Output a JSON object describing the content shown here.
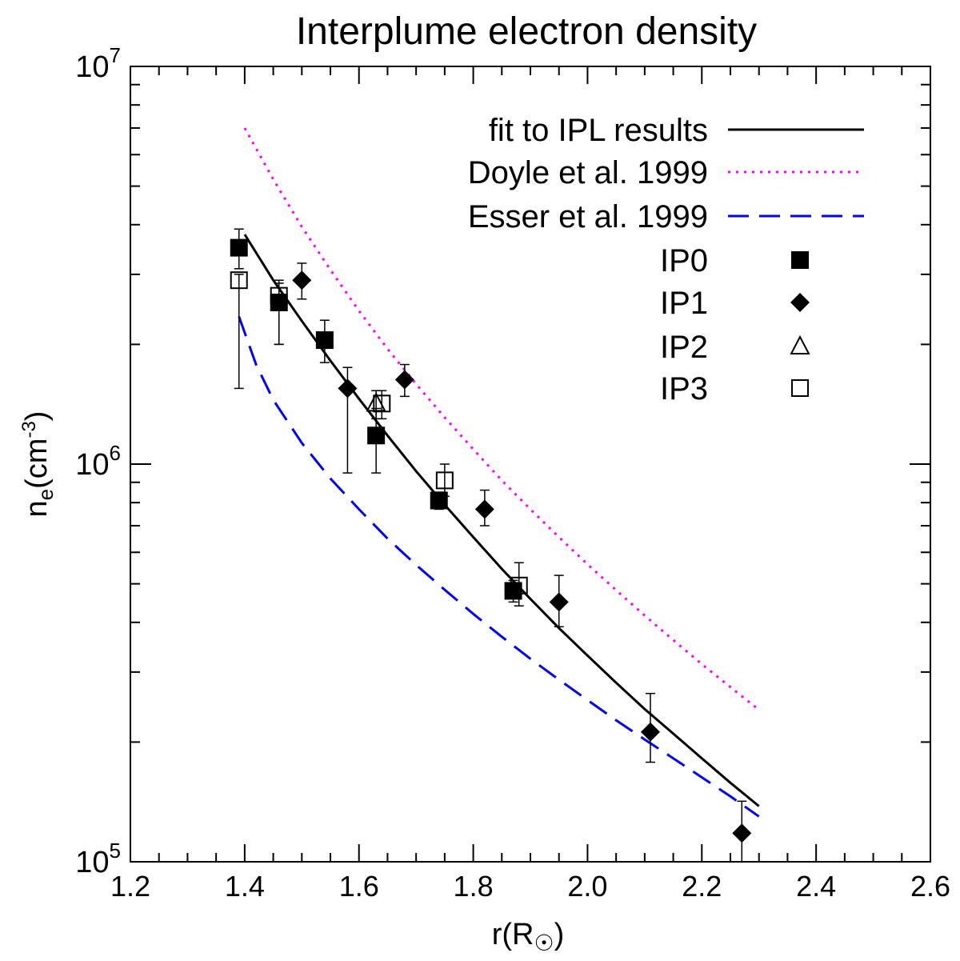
{
  "chart_data": {
    "type": "scatter",
    "title": "Interplume electron density",
    "xlabel": {
      "base": "r(R",
      "symbol": "☉",
      "tail": ")"
    },
    "ylabel": {
      "base": "n",
      "sub": "e",
      "open": "(cm",
      "sup": "-3",
      "close": ")"
    },
    "xlim": [
      1.2,
      2.6
    ],
    "ylim": [
      100000,
      10000000
    ],
    "yscale": "log",
    "grid": false,
    "legend_position": "top-right",
    "x_ticks": [
      {
        "value": 1.2,
        "label": "1.2"
      },
      {
        "value": 1.4,
        "label": "1.4"
      },
      {
        "value": 1.6,
        "label": "1.6"
      },
      {
        "value": 1.8,
        "label": "1.8"
      },
      {
        "value": 2.0,
        "label": "2.0"
      },
      {
        "value": 2.2,
        "label": "2.2"
      },
      {
        "value": 2.4,
        "label": "2.4"
      },
      {
        "value": 2.6,
        "label": "2.6"
      }
    ],
    "y_ticks": [
      {
        "value": 100000,
        "base": "10",
        "exp": "5"
      },
      {
        "value": 1000000,
        "base": "10",
        "exp": "6"
      },
      {
        "value": 10000000,
        "base": "10",
        "exp": "7"
      }
    ],
    "lines": [
      {
        "name": "fit to IPL results",
        "style": "solid",
        "color": "#000000",
        "x": [
          1.4,
          1.45,
          1.5,
          1.55,
          1.6,
          1.65,
          1.7,
          1.75,
          1.8,
          1.85,
          1.9,
          1.95,
          2.0,
          2.05,
          2.1,
          2.15,
          2.2,
          2.25,
          2.3
        ],
        "y": [
          3780000,
          2900000,
          2290000,
          1820000,
          1460000,
          1180000,
          960000,
          790000,
          655000,
          545000,
          458000,
          387000,
          330000,
          282000,
          242000,
          210000,
          182000,
          158000,
          138000
        ]
      },
      {
        "name": "Doyle et al. 1999",
        "style": "dotted",
        "color": "#ff00ff",
        "x": [
          1.4,
          1.45,
          1.5,
          1.55,
          1.6,
          1.65,
          1.7,
          1.75,
          1.8,
          1.85,
          1.9,
          1.95,
          2.0,
          2.05,
          2.1,
          2.15,
          2.2,
          2.25,
          2.3
        ],
        "y": [
          7000000,
          5200000,
          3950000,
          3080000,
          2430000,
          1950000,
          1590000,
          1310000,
          1090000,
          910000,
          770000,
          655000,
          560000,
          482000,
          416000,
          361000,
          314000,
          275000,
          241000
        ]
      },
      {
        "name": "Esser et al. 1999",
        "style": "dashed",
        "color": "#0000ff",
        "x": [
          1.39,
          1.42,
          1.45,
          1.5,
          1.55,
          1.6,
          1.65,
          1.7,
          1.75,
          1.8,
          1.85,
          1.9,
          1.95,
          2.0,
          2.05,
          2.1,
          2.15,
          2.2,
          2.25,
          2.3
        ],
        "y": [
          2350000,
          1780000,
          1450000,
          1130000,
          920000,
          770000,
          650000,
          558000,
          483000,
          420000,
          368000,
          324000,
          287000,
          255000,
          227000,
          203000,
          182000,
          163000,
          146000,
          130000
        ]
      }
    ],
    "series": [
      {
        "name": "IP0",
        "marker": "filled-square",
        "points": [
          {
            "x": 1.39,
            "y": 3500000,
            "lo": 3100000,
            "hi": 3900000
          },
          {
            "x": 1.46,
            "y": 2550000,
            "lo": 2000000,
            "hi": 2900000
          },
          {
            "x": 1.54,
            "y": 2050000,
            "lo": 1800000,
            "hi": 2300000
          },
          {
            "x": 1.63,
            "y": 1180000,
            "lo": 950000,
            "hi": 1380000
          },
          {
            "x": 1.74,
            "y": 810000,
            "lo": 770000,
            "hi": 850000
          },
          {
            "x": 1.87,
            "y": 480000,
            "lo": 450000,
            "hi": 510000
          }
        ]
      },
      {
        "name": "IP1",
        "marker": "filled-diamond",
        "points": [
          {
            "x": 1.5,
            "y": 2900000,
            "lo": 2600000,
            "hi": 3200000
          },
          {
            "x": 1.58,
            "y": 1550000,
            "lo": 950000,
            "hi": 1750000
          },
          {
            "x": 1.68,
            "y": 1630000,
            "lo": 1480000,
            "hi": 1780000
          },
          {
            "x": 1.82,
            "y": 770000,
            "lo": 700000,
            "hi": 860000
          },
          {
            "x": 1.95,
            "y": 450000,
            "lo": 390000,
            "hi": 525000
          },
          {
            "x": 2.11,
            "y": 212000,
            "lo": 178000,
            "hi": 265000
          },
          {
            "x": 2.27,
            "y": 118000,
            "lo": 100000,
            "hi": 142000
          }
        ]
      },
      {
        "name": "IP2",
        "marker": "open-triangle",
        "points": [
          {
            "x": 1.63,
            "y": 1420000,
            "lo": 1300000,
            "hi": 1530000
          }
        ]
      },
      {
        "name": "IP3",
        "marker": "open-square",
        "points": [
          {
            "x": 1.39,
            "y": 2900000,
            "lo": 1550000,
            "hi": 3000000
          },
          {
            "x": 1.46,
            "y": 2650000,
            "lo": 2000000,
            "hi": 2850000
          },
          {
            "x": 1.64,
            "y": 1420000,
            "lo": 1300000,
            "hi": 1530000
          },
          {
            "x": 1.75,
            "y": 910000,
            "lo": 830000,
            "hi": 1000000
          },
          {
            "x": 1.88,
            "y": 495000,
            "lo": 440000,
            "hi": 565000
          }
        ]
      }
    ]
  }
}
